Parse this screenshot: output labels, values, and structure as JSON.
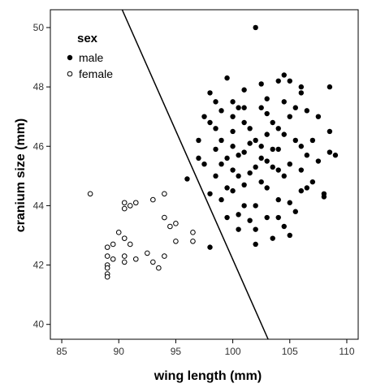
{
  "chart_data": {
    "type": "scatter",
    "title": "",
    "xlabel": "wing length (mm)",
    "ylabel": "cranium size (mm)",
    "xlim": [
      84,
      111
    ],
    "ylim": [
      39.5,
      50.6
    ],
    "xticks": [
      85,
      90,
      95,
      100,
      105,
      110
    ],
    "yticks": [
      40,
      42,
      44,
      46,
      48,
      50
    ],
    "grid": false,
    "legend": {
      "title": "sex",
      "position": "top-left"
    },
    "boundary_line": {
      "x1": 90.3,
      "y1": 50.6,
      "x2": 103.1,
      "y2": 39.5
    },
    "series": [
      {
        "name": "male",
        "marker": "filled-circle",
        "color": "#000000",
        "points": [
          [
            102,
            50
          ],
          [
            96,
            44.9
          ],
          [
            97,
            45.6
          ],
          [
            98,
            42.6
          ],
          [
            102,
            42.7
          ],
          [
            100.5,
            43.2
          ],
          [
            108,
            44.3
          ],
          [
            108,
            44.4
          ],
          [
            109,
            45.7
          ],
          [
            108.5,
            48
          ],
          [
            104.5,
            48.4
          ],
          [
            104,
            48.2
          ],
          [
            98.5,
            47.5
          ],
          [
            99.5,
            48.3
          ],
          [
            103,
            47.6
          ],
          [
            97.5,
            47
          ],
          [
            97,
            46.2
          ],
          [
            98,
            46.8
          ],
          [
            98.5,
            45.9
          ],
          [
            99,
            46.2
          ],
          [
            98.5,
            45
          ],
          [
            99.5,
            44.6
          ],
          [
            99,
            44.2
          ],
          [
            100,
            45.2
          ],
          [
            101,
            45.8
          ],
          [
            101,
            46.8
          ],
          [
            100.5,
            47.3
          ],
          [
            102,
            46.2
          ],
          [
            102.5,
            46
          ],
          [
            103,
            45.5
          ],
          [
            104,
            45.9
          ],
          [
            104.5,
            46.4
          ],
          [
            105,
            47
          ],
          [
            106,
            46
          ],
          [
            106.5,
            45.7
          ],
          [
            107,
            46.2
          ],
          [
            100,
            44.5
          ],
          [
            101,
            44
          ],
          [
            102,
            44
          ],
          [
            103,
            44.6
          ],
          [
            104,
            44.2
          ],
          [
            105,
            44.1
          ],
          [
            100.5,
            43.7
          ],
          [
            101.5,
            43.5
          ],
          [
            103,
            43.6
          ],
          [
            104,
            43.6
          ],
          [
            105.5,
            43.8
          ],
          [
            106,
            44.5
          ],
          [
            107,
            44.8
          ],
          [
            100,
            46.5
          ],
          [
            101.5,
            46.6
          ],
          [
            103.5,
            46.8
          ],
          [
            105.5,
            47.3
          ],
          [
            106.5,
            47.2
          ],
          [
            102.5,
            47.3
          ],
          [
            101,
            47.9
          ],
          [
            100.5,
            45.7
          ],
          [
            102,
            45.3
          ],
          [
            103.5,
            45.3
          ],
          [
            105,
            45.4
          ],
          [
            99.5,
            45.6
          ],
          [
            100.5,
            45
          ],
          [
            101.5,
            45.1
          ],
          [
            103,
            46.4
          ],
          [
            104,
            46.6
          ],
          [
            105.5,
            46.2
          ],
          [
            106,
            45.2
          ],
          [
            107.5,
            47
          ],
          [
            108.5,
            46.5
          ],
          [
            106,
            48
          ],
          [
            105,
            48.2
          ],
          [
            102.5,
            48.1
          ],
          [
            101,
            47.3
          ],
          [
            100,
            47.5
          ],
          [
            99,
            47.2
          ],
          [
            98.5,
            46.6
          ],
          [
            98,
            47.8
          ],
          [
            97.5,
            45.4
          ],
          [
            98,
            44.4
          ],
          [
            99.5,
            43.6
          ],
          [
            101,
            44.7
          ],
          [
            102.5,
            44.8
          ],
          [
            104.5,
            45
          ],
          [
            106.5,
            44.6
          ],
          [
            104.5,
            43.3
          ],
          [
            102,
            43.2
          ],
          [
            103.5,
            42.9
          ],
          [
            105,
            43
          ],
          [
            100,
            47
          ],
          [
            103,
            47.1
          ],
          [
            104.5,
            47.5
          ],
          [
            107.5,
            45.5
          ],
          [
            108.5,
            45.8
          ],
          [
            106,
            47.8
          ],
          [
            102.5,
            45.6
          ],
          [
            103.5,
            45.9
          ],
          [
            101.5,
            46.1
          ],
          [
            100,
            46
          ],
          [
            99,
            45.4
          ],
          [
            104,
            45.2
          ]
        ]
      },
      {
        "name": "female",
        "marker": "open-circle",
        "color": "#000000",
        "points": [
          [
            87.5,
            44.4
          ],
          [
            90.5,
            44.1
          ],
          [
            91,
            44
          ],
          [
            91.5,
            44.1
          ],
          [
            93,
            44.2
          ],
          [
            94,
            44.4
          ],
          [
            90.5,
            43.9
          ],
          [
            94,
            43.6
          ],
          [
            94.5,
            43.3
          ],
          [
            95,
            43.4
          ],
          [
            90,
            43.1
          ],
          [
            89.5,
            42.7
          ],
          [
            89,
            42.6
          ],
          [
            90.5,
            42.9
          ],
          [
            91,
            42.7
          ],
          [
            89,
            42.3
          ],
          [
            89.5,
            42.2
          ],
          [
            90.5,
            42.3
          ],
          [
            90.5,
            42.1
          ],
          [
            91.5,
            42.2
          ],
          [
            92.5,
            42.4
          ],
          [
            93,
            42.1
          ],
          [
            93.5,
            41.9
          ],
          [
            94,
            42.3
          ],
          [
            95,
            42.8
          ],
          [
            96.5,
            43.1
          ],
          [
            96.5,
            42.8
          ],
          [
            89,
            42
          ],
          [
            89,
            41.9
          ],
          [
            89,
            41.7
          ],
          [
            89,
            41.6
          ]
        ]
      }
    ]
  }
}
